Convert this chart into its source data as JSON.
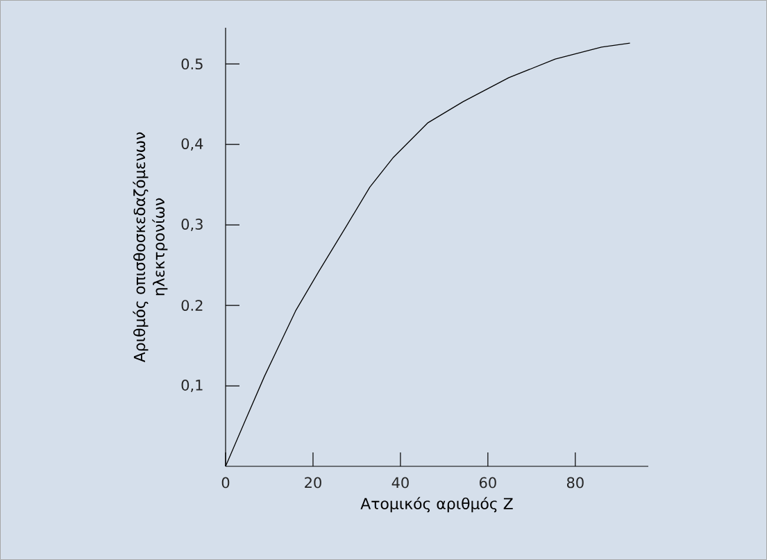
{
  "chart_data": {
    "type": "line",
    "xlabel": "Ατομικός αριθμός Z",
    "ylabel": "Αριθμός οπισθοσκεδαζόμενων ηλεκτρονίων",
    "x": [
      0,
      4.5,
      8.9,
      16,
      21.3,
      27.8,
      33,
      38.4,
      46.3,
      54.3,
      64.8,
      75.4,
      86,
      92.5
    ],
    "values": [
      0,
      0.057,
      0.112,
      0.193,
      0.242,
      0.3,
      0.347,
      0.384,
      0.427,
      0.453,
      0.483,
      0.506,
      0.521,
      0.526
    ],
    "color": "#000000",
    "xlim": [
      0,
      96.7
    ],
    "ylim": [
      0,
      0.545
    ],
    "xticks": [
      0,
      20,
      40,
      60,
      80
    ],
    "yticks": [
      {
        "value": 0.1,
        "label": "0,1"
      },
      {
        "value": 0.2,
        "label": "0.2"
      },
      {
        "value": 0.3,
        "label": "0,3"
      },
      {
        "value": 0.4,
        "label": "0,4"
      },
      {
        "value": 0.5,
        "label": "0.5"
      }
    ],
    "grid": false
  }
}
